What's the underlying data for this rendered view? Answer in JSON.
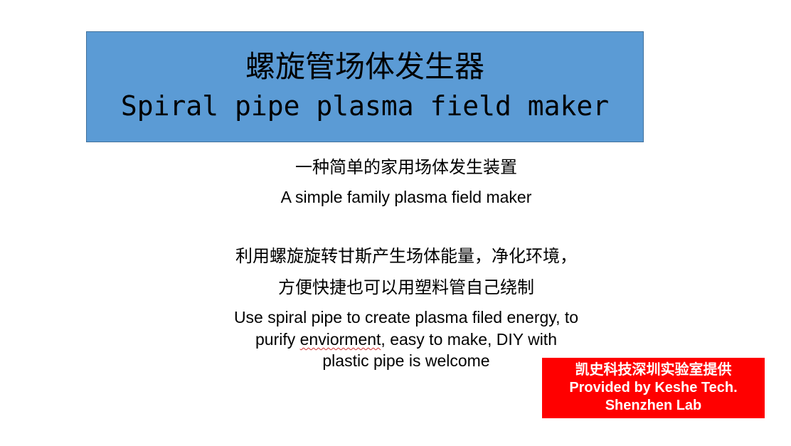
{
  "colors": {
    "title_box": "#5b9bd5",
    "badge": "#ff0000",
    "text": "#000000",
    "badge_text": "#ffffff"
  },
  "title": {
    "cn": "螺旋管场体发生器",
    "en": "Spiral pipe plasma field maker"
  },
  "subtitle": {
    "cn": "一种简单的家用场体发生装置",
    "en": "A simple family plasma field maker"
  },
  "description": {
    "cn_line1": "利用螺旋旋转甘斯产生场体能量，净化环境，",
    "cn_line2": "方便快捷也可以用塑料管自己绕制",
    "en_line1": "Use spiral pipe to create plasma filed energy, to",
    "en_line2_prefix": "purify ",
    "en_line2_misspelled": "enviorment",
    "en_line2_suffix": ", easy to make, DIY with",
    "en_line3": "plastic pipe is welcome"
  },
  "badge": {
    "line1": "凯史科技深圳实验室提供",
    "line2": "Provided by Keshe Tech.",
    "line3": "Shenzhen Lab"
  }
}
